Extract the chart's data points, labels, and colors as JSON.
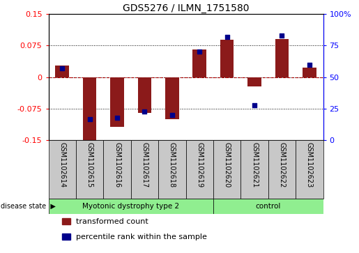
{
  "title": "GDS5276 / ILMN_1751580",
  "samples": [
    "GSM1102614",
    "GSM1102615",
    "GSM1102616",
    "GSM1102617",
    "GSM1102618",
    "GSM1102619",
    "GSM1102620",
    "GSM1102621",
    "GSM1102622",
    "GSM1102623"
  ],
  "red_values": [
    0.028,
    -0.155,
    -0.118,
    -0.085,
    -0.1,
    0.065,
    0.088,
    -0.022,
    0.09,
    0.022
  ],
  "blue_values": [
    57,
    17,
    18,
    23,
    20,
    70,
    82,
    28,
    83,
    60
  ],
  "ylim_left": [
    -0.15,
    0.15
  ],
  "ylim_right": [
    0,
    100
  ],
  "yticks_left": [
    -0.15,
    -0.075,
    0,
    0.075,
    0.15
  ],
  "ytick_labels_left": [
    "-0.15",
    "-0.075",
    "0",
    "0.075",
    "0.15"
  ],
  "yticks_right": [
    0,
    25,
    50,
    75,
    100
  ],
  "ytick_labels_right": [
    "0",
    "25",
    "50",
    "75",
    "100%"
  ],
  "group1_label": "Myotonic dystrophy type 2",
  "group2_label": "control",
  "group1_count": 6,
  "group2_count": 4,
  "disease_state_label": "disease state",
  "legend1": "transformed count",
  "legend2": "percentile rank within the sample",
  "bar_color": "#8B1A1A",
  "dot_color": "#00008B",
  "group1_color": "#90EE90",
  "group2_color": "#90EE90",
  "bg_color": "#C8C8C8",
  "bar_width": 0.5,
  "dot_size": 18,
  "title_fontsize": 10,
  "tick_fontsize": 8,
  "label_fontsize": 7,
  "legend_fontsize": 8
}
